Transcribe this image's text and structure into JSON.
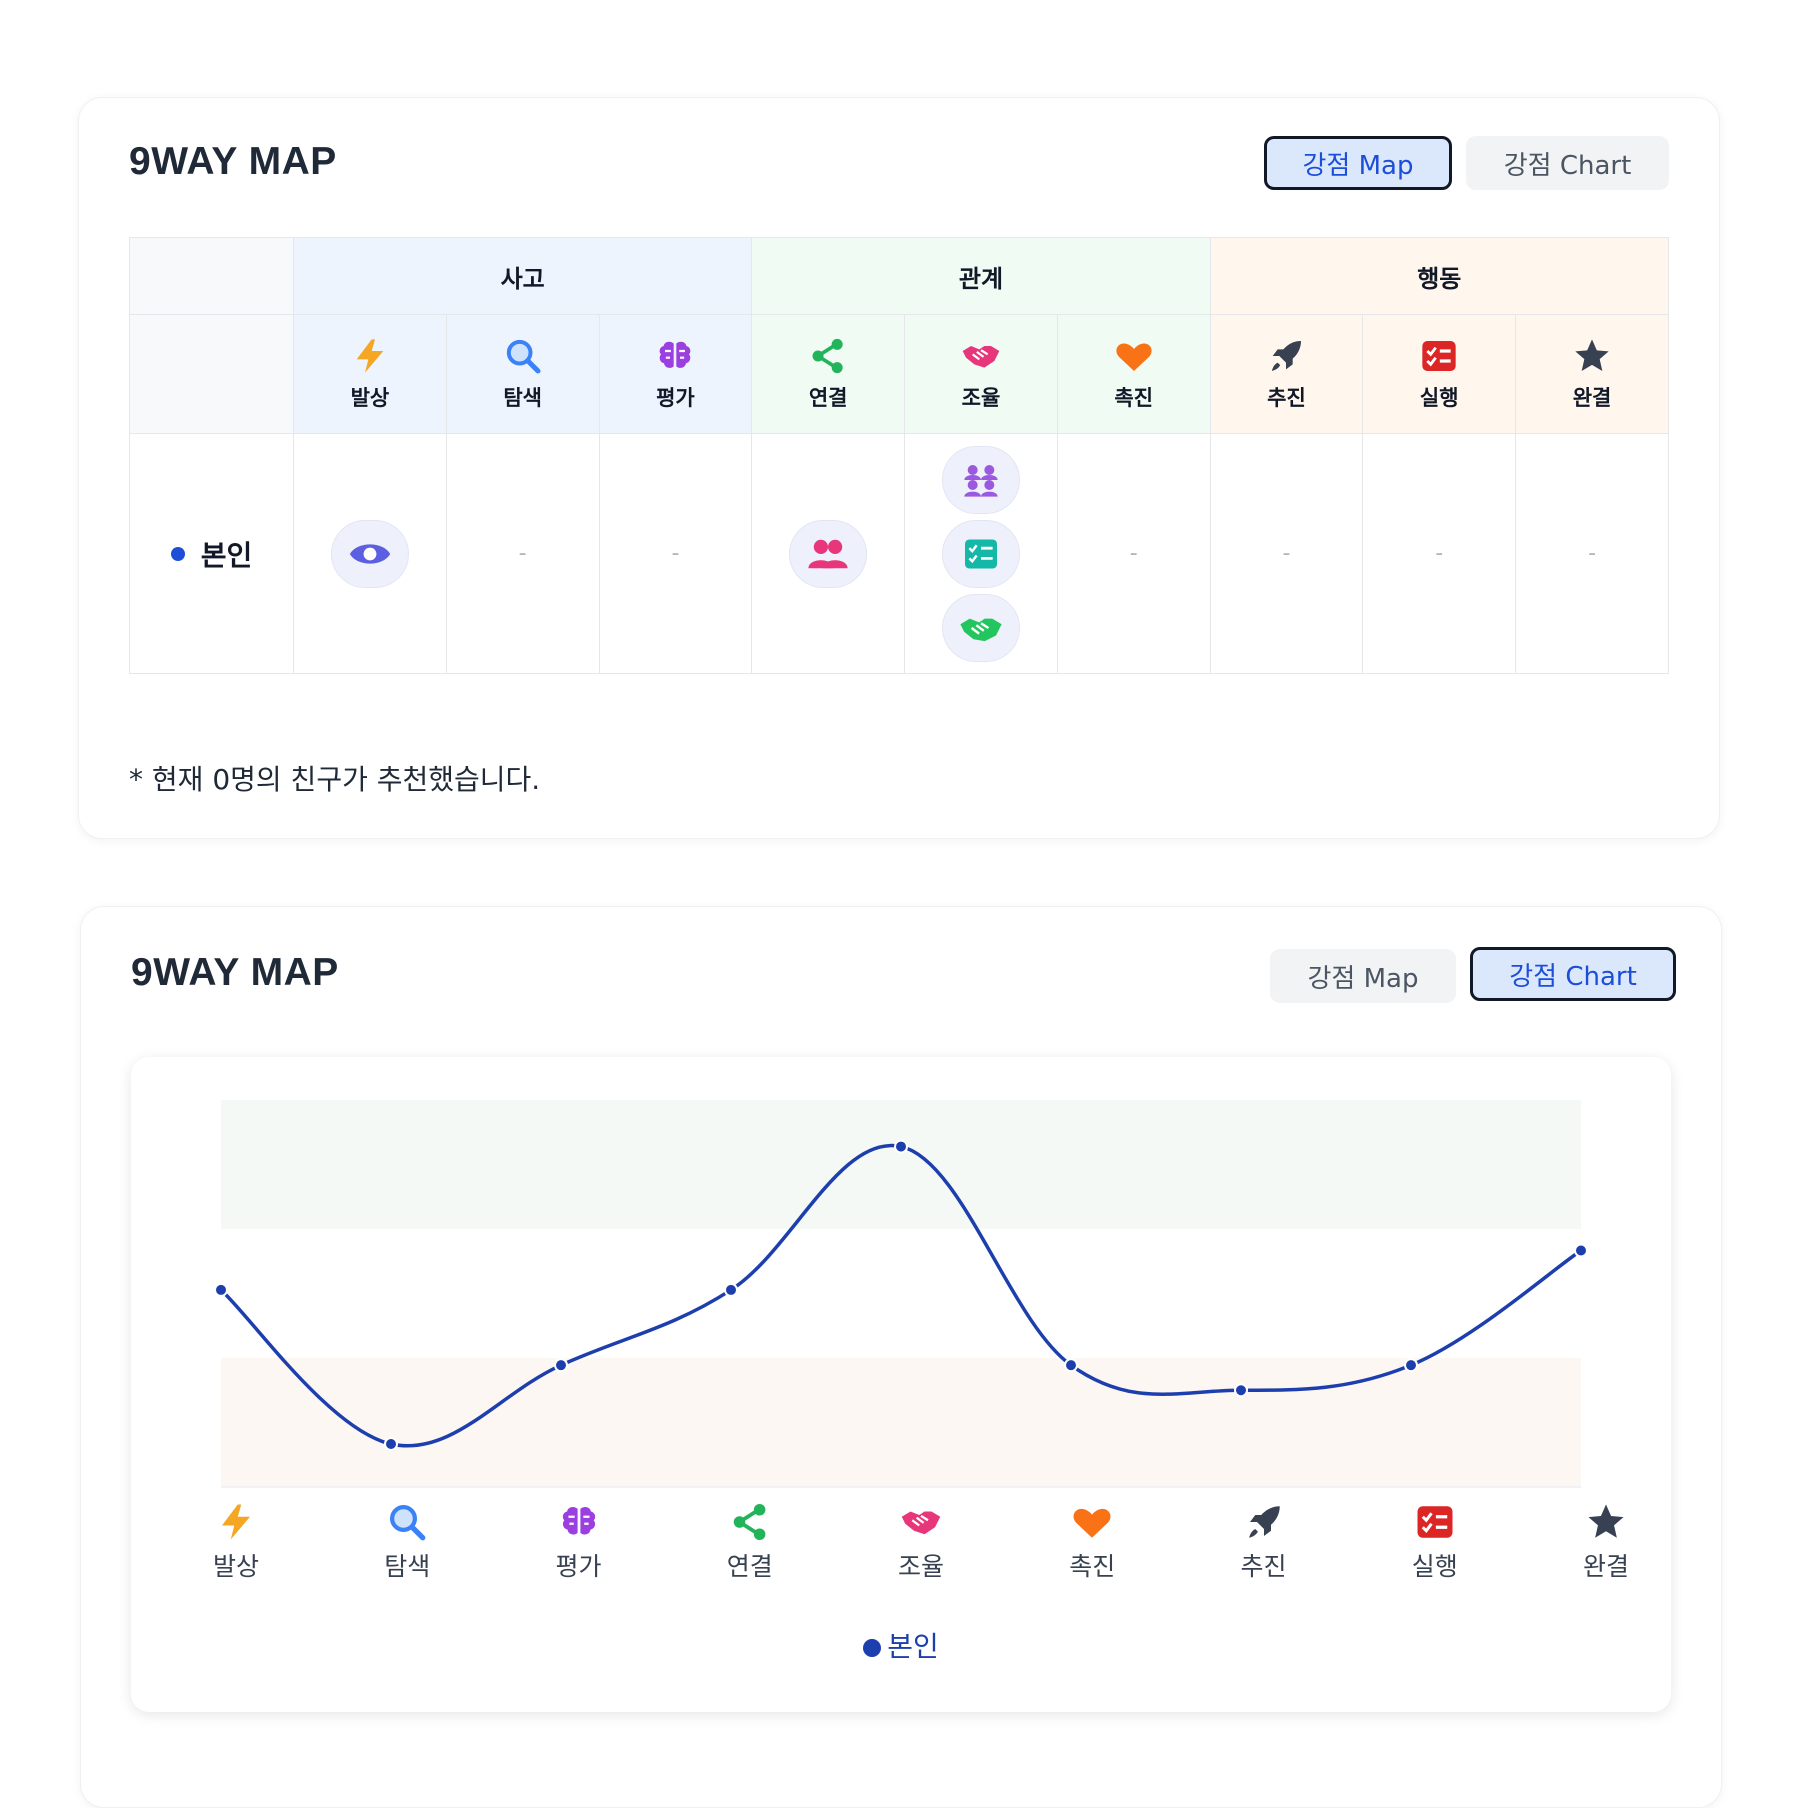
{
  "map_card": {
    "title": "9WAY MAP",
    "tabs": [
      {
        "label": "강점 Map",
        "active": true
      },
      {
        "label": "강점 Chart",
        "active": false
      }
    ],
    "groups": [
      {
        "label": "사고"
      },
      {
        "label": "관계"
      },
      {
        "label": "행동"
      }
    ],
    "traits": [
      {
        "label": "발상",
        "icon": "lightning-icon"
      },
      {
        "label": "탐색",
        "icon": "magnifier-icon"
      },
      {
        "label": "평가",
        "icon": "brain-icon"
      },
      {
        "label": "연결",
        "icon": "share-icon"
      },
      {
        "label": "조율",
        "icon": "handshake-icon"
      },
      {
        "label": "촉진",
        "icon": "heart-icon"
      },
      {
        "label": "추진",
        "icon": "rocket-icon"
      },
      {
        "label": "실행",
        "icon": "checklist-icon"
      },
      {
        "label": "완결",
        "icon": "star-icon"
      }
    ],
    "row": {
      "label": "본인",
      "dash": "-"
    },
    "note": "* 현재 0명의 친구가 추천했습니다."
  },
  "chart_card": {
    "title": "9WAY MAP",
    "tabs": [
      {
        "label": "강점 Map",
        "active": false
      },
      {
        "label": "강점 Chart",
        "active": true
      }
    ]
  },
  "chart_data": {
    "type": "line",
    "categories": [
      "발상",
      "탐색",
      "평가",
      "연결",
      "조율",
      "촉진",
      "추진",
      "실행",
      "완결"
    ],
    "series": [
      {
        "name": "본인",
        "values": [
          5.5,
          1.2,
          3.4,
          5.5,
          9.5,
          3.4,
          2.7,
          3.4,
          6.6
        ],
        "color": "#1d3fae"
      }
    ],
    "ylim": [
      0,
      12
    ],
    "bands": [
      {
        "from": 0,
        "to": 3.6,
        "color": "#fdf7f3"
      },
      {
        "from": 7.2,
        "to": 10.8,
        "color": "#f4f9f5"
      }
    ],
    "legend": "본인",
    "grid": false
  },
  "colors": {
    "accent": "#1d4ed8",
    "line": "#1d3fae"
  }
}
